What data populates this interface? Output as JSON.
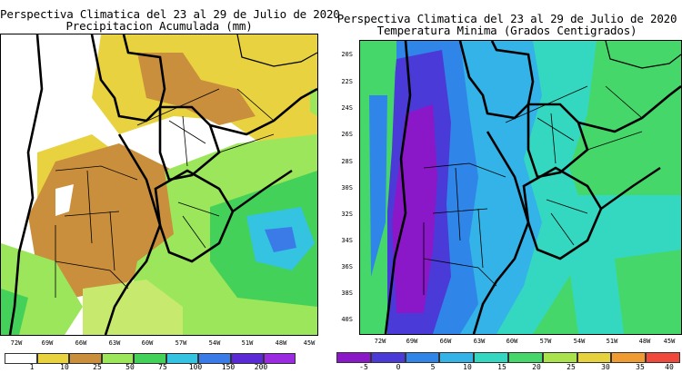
{
  "left_panel": {
    "title_line1": "Perspectiva Climatica del 23 al 29 de Julio de 2020",
    "title_line2": "Precipitacion Acumulada (mm)",
    "lon_labels": [
      "72W",
      "69W",
      "66W",
      "63W",
      "60W",
      "57W",
      "54W",
      "51W",
      "48W",
      "45W"
    ],
    "colorbar_ticks": [
      "1",
      "10",
      "25",
      "50",
      "75",
      "100",
      "150",
      "200"
    ],
    "colorbar_colors": [
      "#ffffff",
      "#e9d23f",
      "#c98f3c",
      "#9be65a",
      "#43d15a",
      "#34c3e0",
      "#3a7be8",
      "#5a2ad6",
      "#9a2be0"
    ]
  },
  "right_panel": {
    "title_line1": "Perspectiva Climatica del 23 al 29 de Julio de 2020",
    "title_line2": "Temperatura Minima (Grados Centigrados)",
    "lat_labels": [
      "20S",
      "22S",
      "24S",
      "26S",
      "28S",
      "30S",
      "32S",
      "34S",
      "36S",
      "38S",
      "40S"
    ],
    "lon_labels": [
      "72W",
      "69W",
      "66W",
      "63W",
      "60W",
      "57W",
      "54W",
      "51W",
      "48W",
      "45W"
    ],
    "colorbar_ticks": [
      "-5",
      "0",
      "5",
      "10",
      "15",
      "20",
      "25",
      "30",
      "35",
      "40"
    ],
    "colorbar_colors": [
      "#8a18c9",
      "#4a3ad8",
      "#2f86e8",
      "#33b3e8",
      "#34d8c0",
      "#45d76a",
      "#a9e24a",
      "#e6d23c",
      "#f09a32",
      "#f0483a"
    ]
  }
}
